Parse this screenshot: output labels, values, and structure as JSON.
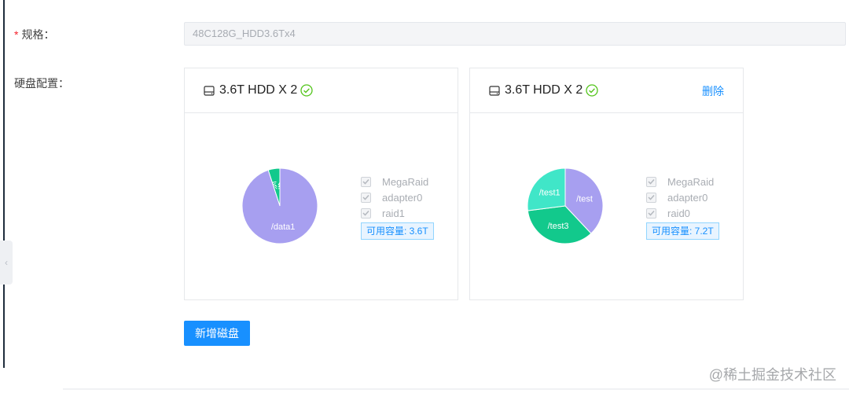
{
  "form": {
    "spec_required_mark": "*",
    "spec_label": "规格：",
    "spec_value": "48C128G_HDD3.6Tx4",
    "disk_config_label": "硬盘配置："
  },
  "disks": [
    {
      "title": "3.6T HDD X 2",
      "show_delete": false,
      "chart_data": {
        "type": "pie",
        "slices": [
          {
            "label": "/(系统)",
            "value": 5,
            "color": "#12c98c"
          },
          {
            "label": "/data1",
            "value": 95,
            "color": "#a79ff0"
          }
        ]
      },
      "options": [
        "MegaRaid",
        "adapter0",
        "raid1"
      ],
      "capacity_text": "可用容量: 3.6T"
    },
    {
      "title": "3.6T HDD X 2",
      "show_delete": true,
      "delete_label": "删除",
      "chart_data": {
        "type": "pie",
        "slices": [
          {
            "label": "/test",
            "value": 38,
            "color": "#a79ff0"
          },
          {
            "label": "/test3",
            "value": 35,
            "color": "#12c98c"
          },
          {
            "label": "/test1",
            "value": 27,
            "color": "#40e6c8"
          }
        ]
      },
      "options": [
        "MegaRaid",
        "adapter0",
        "raid0"
      ],
      "capacity_text": "可用容量: 7.2T"
    }
  ],
  "add_disk_label": "新增磁盘",
  "watermark": "@稀土掘金技术社区",
  "colors": {
    "primary": "#1890ff",
    "ok": "#52c41a",
    "required": "#f5222d"
  }
}
